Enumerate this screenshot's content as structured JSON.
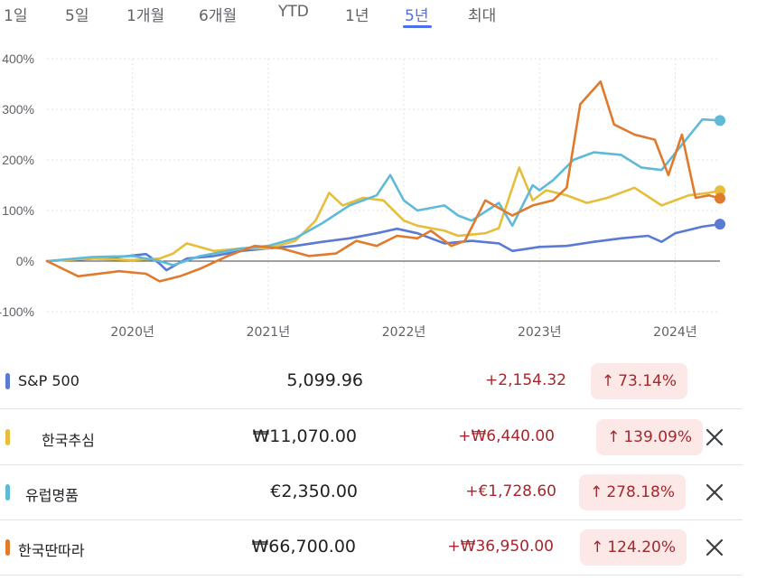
{
  "tabs": [
    {
      "label": "1일",
      "active": false
    },
    {
      "label": "5일",
      "active": false
    },
    {
      "label": "1개월",
      "active": false
    },
    {
      "label": "6개월",
      "active": false
    },
    {
      "label": "YTD",
      "active": false
    },
    {
      "label": "1년",
      "active": false
    },
    {
      "label": "5년",
      "active": true
    },
    {
      "label": "최대",
      "active": false
    }
  ],
  "rows": [
    {
      "name": "S&P 500",
      "price": "5,099.96",
      "change": "+2,154.32",
      "pct": "73.14%",
      "color": "#5b7ad3",
      "removable": false
    },
    {
      "name": "한국추심",
      "price": "₩11,070.00",
      "change": "+₩6,440.00",
      "pct": "139.09%",
      "color": "#e6be3b",
      "removable": true
    },
    {
      "name": "유럽명품",
      "price": "€2,350.00",
      "change": "+€1,728.60",
      "pct": "278.18%",
      "color": "#5fbad8",
      "removable": true
    },
    {
      "name": "한국딴따라",
      "price": "₩66,700.00",
      "change": "+₩36,950.00",
      "pct": "124.20%",
      "color": "#e07a2c",
      "removable": true
    }
  ],
  "chart_data": {
    "type": "line",
    "x_unit": "year",
    "xlim": [
      2019.37,
      2024.33
    ],
    "ylim": [
      -100,
      400
    ],
    "y_ticks": [
      "400%",
      "300%",
      "200%",
      "100%",
      "0%",
      "-100%"
    ],
    "y_tick_values": [
      400,
      300,
      200,
      100,
      0,
      -100
    ],
    "x_ticks": [
      "2020년",
      "2021년",
      "2022년",
      "2023년",
      "2024년"
    ],
    "x_tick_values": [
      2020,
      2021,
      2022,
      2023,
      2024
    ],
    "grid": true,
    "series": [
      {
        "name": "S&P 500",
        "color": "#5b7ad3",
        "x": [
          2019.37,
          2019.6,
          2019.9,
          2020.1,
          2020.2,
          2020.25,
          2020.4,
          2020.6,
          2020.8,
          2021.0,
          2021.2,
          2021.4,
          2021.6,
          2021.8,
          2021.95,
          2022.1,
          2022.3,
          2022.5,
          2022.7,
          2022.8,
          2023.0,
          2023.2,
          2023.4,
          2023.6,
          2023.8,
          2023.9,
          2024.0,
          2024.2,
          2024.33
        ],
        "values": [
          0,
          3,
          8,
          14,
          -5,
          -18,
          5,
          10,
          20,
          25,
          30,
          38,
          45,
          55,
          64,
          55,
          35,
          40,
          35,
          20,
          28,
          30,
          38,
          45,
          50,
          38,
          55,
          68,
          73
        ]
      },
      {
        "name": "한국추심",
        "color": "#e6be3b",
        "x": [
          2019.37,
          2019.7,
          2020.0,
          2020.2,
          2020.3,
          2020.4,
          2020.6,
          2020.8,
          2021.0,
          2021.2,
          2021.35,
          2021.45,
          2021.55,
          2021.7,
          2021.85,
          2022.0,
          2022.1,
          2022.3,
          2022.4,
          2022.6,
          2022.7,
          2022.85,
          2022.95,
          2023.05,
          2023.2,
          2023.35,
          2023.5,
          2023.7,
          2023.9,
          2024.1,
          2024.25,
          2024.33
        ],
        "values": [
          0,
          5,
          2,
          5,
          15,
          35,
          20,
          25,
          25,
          40,
          80,
          135,
          110,
          125,
          120,
          80,
          70,
          60,
          50,
          55,
          65,
          185,
          120,
          140,
          130,
          115,
          125,
          145,
          110,
          130,
          135,
          139
        ]
      },
      {
        "name": "유럽명품",
        "color": "#5fbad8",
        "x": [
          2019.37,
          2019.7,
          2020.0,
          2020.2,
          2020.3,
          2020.5,
          2020.8,
          2021.0,
          2021.2,
          2021.4,
          2021.6,
          2021.8,
          2021.9,
          2022.0,
          2022.1,
          2022.3,
          2022.4,
          2022.5,
          2022.7,
          2022.8,
          2022.95,
          2023.0,
          2023.1,
          2023.25,
          2023.4,
          2023.6,
          2023.75,
          2023.9,
          2024.05,
          2024.2,
          2024.33
        ],
        "values": [
          0,
          8,
          10,
          0,
          -8,
          10,
          25,
          30,
          45,
          75,
          110,
          130,
          170,
          120,
          100,
          110,
          90,
          80,
          115,
          70,
          150,
          140,
          160,
          200,
          215,
          210,
          185,
          180,
          230,
          280,
          278
        ]
      },
      {
        "name": "한국딴따라",
        "color": "#e07a2c",
        "x": [
          2019.37,
          2019.6,
          2019.9,
          2020.1,
          2020.2,
          2020.35,
          2020.5,
          2020.7,
          2020.9,
          2021.1,
          2021.3,
          2021.5,
          2021.65,
          2021.8,
          2021.95,
          2022.1,
          2022.2,
          2022.35,
          2022.45,
          2022.6,
          2022.8,
          2022.95,
          2023.1,
          2023.2,
          2023.3,
          2023.45,
          2023.55,
          2023.7,
          2023.85,
          2023.95,
          2024.05,
          2024.15,
          2024.25,
          2024.33
        ],
        "values": [
          0,
          -30,
          -20,
          -25,
          -40,
          -30,
          -15,
          10,
          30,
          25,
          10,
          15,
          40,
          30,
          50,
          45,
          60,
          30,
          40,
          120,
          90,
          110,
          120,
          145,
          310,
          355,
          270,
          250,
          240,
          170,
          250,
          125,
          130,
          124
        ]
      }
    ]
  }
}
